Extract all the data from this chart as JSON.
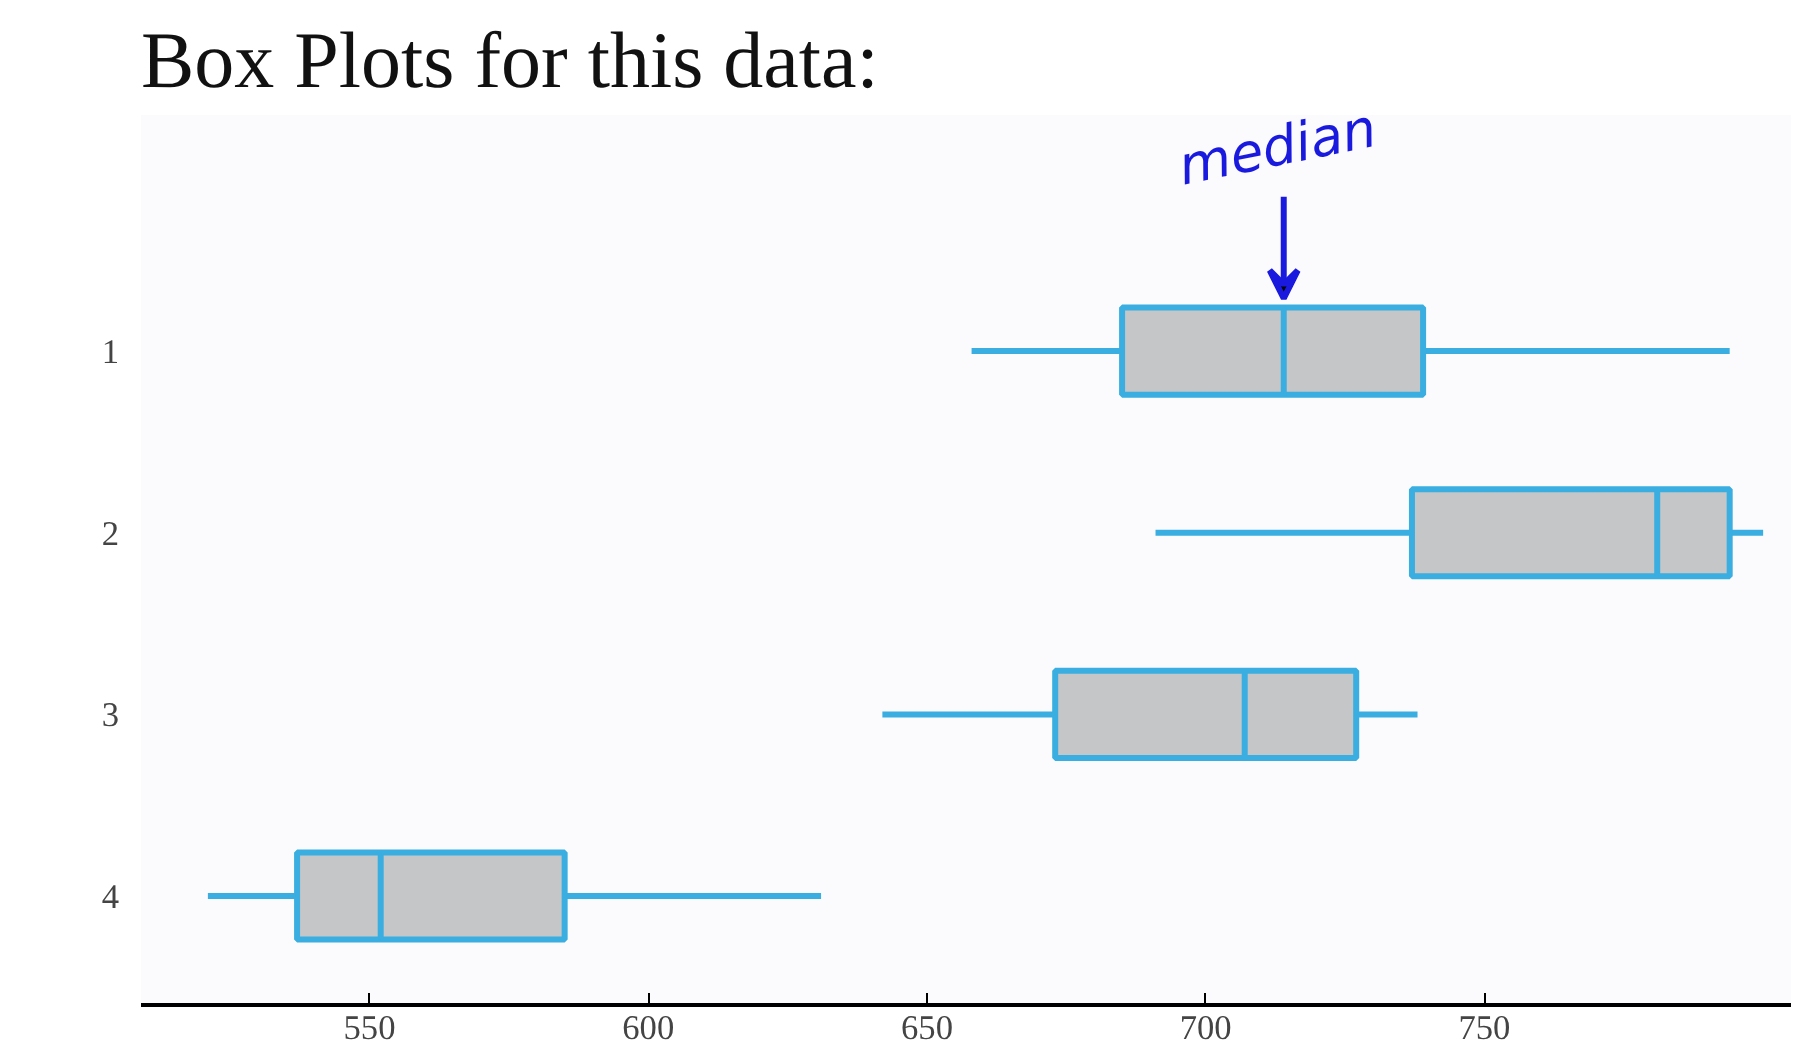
{
  "chart_data": {
    "type": "box",
    "orientation": "horizontal",
    "title": "Box Plots for this data:",
    "categories": [
      "1",
      "2",
      "3",
      "4"
    ],
    "boxes": [
      {
        "low": 658,
        "q1": 685,
        "median": 714,
        "q3": 739,
        "high": 794
      },
      {
        "low": 691,
        "q1": 737,
        "median": 781,
        "q3": 794,
        "high": 800
      },
      {
        "low": 642,
        "q1": 673,
        "median": 707,
        "q3": 727,
        "high": 738
      },
      {
        "low": 521,
        "q1": 537,
        "median": 552,
        "q3": 585,
        "high": 631
      }
    ],
    "color": "#3aaee0",
    "xlim": [
      509,
      805
    ],
    "xticks": [
      550,
      600,
      650,
      700,
      750
    ],
    "grid": false,
    "annotations": [
      {
        "text": "median",
        "x": 714,
        "y": "1"
      }
    ]
  }
}
